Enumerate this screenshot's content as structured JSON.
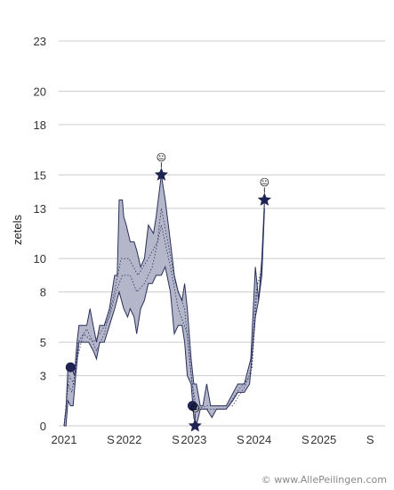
{
  "chart_data": {
    "type": "area",
    "ylabel": "zetels",
    "ylim": [
      0,
      23
    ],
    "y_ticks": [
      0,
      3,
      5,
      8,
      10,
      13,
      15,
      18,
      20,
      23
    ],
    "x_ticks": [
      {
        "label": "2021",
        "t": 2021.0
      },
      {
        "label": "S",
        "t": 2021.72
      },
      {
        "label": "2022",
        "t": 2022.0
      },
      {
        "label": "S",
        "t": 2022.72
      },
      {
        "label": "2023",
        "t": 2023.0
      },
      {
        "label": "S",
        "t": 2023.72
      },
      {
        "label": "2024",
        "t": 2024.0
      },
      {
        "label": "S",
        "t": 2024.72
      },
      {
        "label": "2025",
        "t": 2025.0
      },
      {
        "label": "S",
        "t": 2025.72
      }
    ],
    "xlim": [
      2021.0,
      2025.95
    ],
    "grid": true,
    "colors": {
      "band": "#b3b7c9",
      "line": "#2a2f5c",
      "grid": "#cccccc"
    },
    "series": [
      {
        "name": "",
        "band_high": [
          [
            2021.0,
            0
          ],
          [
            2021.03,
            1
          ],
          [
            2021.06,
            3.5
          ],
          [
            2021.12,
            3.5
          ],
          [
            2021.16,
            3
          ],
          [
            2021.2,
            5
          ],
          [
            2021.23,
            6
          ],
          [
            2021.35,
            6
          ],
          [
            2021.4,
            7
          ],
          [
            2021.45,
            6
          ],
          [
            2021.5,
            5
          ],
          [
            2021.55,
            6
          ],
          [
            2021.62,
            6
          ],
          [
            2021.7,
            7
          ],
          [
            2021.78,
            9
          ],
          [
            2021.82,
            9
          ],
          [
            2021.85,
            13.5
          ],
          [
            2021.9,
            13.5
          ],
          [
            2021.92,
            12.5
          ],
          [
            2021.96,
            12
          ],
          [
            2022.02,
            11
          ],
          [
            2022.08,
            11
          ],
          [
            2022.12,
            10.5
          ],
          [
            2022.18,
            9.5
          ],
          [
            2022.24,
            10
          ],
          [
            2022.3,
            12
          ],
          [
            2022.38,
            11.5
          ],
          [
            2022.42,
            12.5
          ],
          [
            2022.5,
            15
          ],
          [
            2022.56,
            13.5
          ],
          [
            2022.64,
            11
          ],
          [
            2022.7,
            9
          ],
          [
            2022.76,
            8
          ],
          [
            2022.82,
            7.5
          ],
          [
            2022.86,
            8.5
          ],
          [
            2022.9,
            7
          ],
          [
            2022.96,
            4
          ],
          [
            2023.0,
            2.5
          ],
          [
            2023.04,
            2.5
          ],
          [
            2023.1,
            1.2
          ],
          [
            2023.14,
            1.2
          ],
          [
            2023.2,
            2.5
          ],
          [
            2023.26,
            1.2
          ],
          [
            2023.35,
            1.2
          ],
          [
            2023.5,
            1.2
          ],
          [
            2023.68,
            2.5
          ],
          [
            2023.78,
            2.5
          ],
          [
            2023.88,
            4
          ],
          [
            2023.95,
            9.5
          ],
          [
            2024.0,
            7.5
          ],
          [
            2024.05,
            10
          ],
          [
            2024.09,
            13.5
          ]
        ],
        "band_low": [
          [
            2021.0,
            0
          ],
          [
            2021.03,
            0
          ],
          [
            2021.06,
            1.5
          ],
          [
            2021.1,
            1.2
          ],
          [
            2021.14,
            1.2
          ],
          [
            2021.18,
            3
          ],
          [
            2021.23,
            5
          ],
          [
            2021.32,
            5
          ],
          [
            2021.38,
            5
          ],
          [
            2021.45,
            4.5
          ],
          [
            2021.5,
            4
          ],
          [
            2021.55,
            5
          ],
          [
            2021.62,
            5
          ],
          [
            2021.7,
            6
          ],
          [
            2021.78,
            7
          ],
          [
            2021.85,
            8
          ],
          [
            2021.92,
            7
          ],
          [
            2021.98,
            6.5
          ],
          [
            2022.02,
            7
          ],
          [
            2022.08,
            6.5
          ],
          [
            2022.12,
            5.5
          ],
          [
            2022.18,
            7
          ],
          [
            2022.24,
            7.5
          ],
          [
            2022.3,
            8.5
          ],
          [
            2022.36,
            8.5
          ],
          [
            2022.42,
            9
          ],
          [
            2022.5,
            9
          ],
          [
            2022.56,
            9.5
          ],
          [
            2022.64,
            8
          ],
          [
            2022.7,
            5.5
          ],
          [
            2022.76,
            6
          ],
          [
            2022.82,
            6
          ],
          [
            2022.86,
            5
          ],
          [
            2022.9,
            3
          ],
          [
            2022.96,
            2.5
          ],
          [
            2023.0,
            0.5
          ],
          [
            2023.04,
            0
          ],
          [
            2023.1,
            1
          ],
          [
            2023.2,
            1
          ],
          [
            2023.28,
            0.5
          ],
          [
            2023.35,
            1
          ],
          [
            2023.5,
            1
          ],
          [
            2023.6,
            1.5
          ],
          [
            2023.68,
            2
          ],
          [
            2023.78,
            2
          ],
          [
            2023.86,
            2.5
          ],
          [
            2023.95,
            6.5
          ],
          [
            2024.0,
            7.5
          ],
          [
            2024.05,
            9
          ],
          [
            2024.09,
            13
          ]
        ],
        "inner_lines": [
          [
            [
              2021.0,
              0
            ],
            [
              2021.06,
              2.5
            ],
            [
              2021.12,
              2
            ],
            [
              2021.2,
              4
            ],
            [
              2021.3,
              5.5
            ],
            [
              2021.45,
              5
            ],
            [
              2021.55,
              5.5
            ],
            [
              2021.7,
              6.5
            ],
            [
              2021.8,
              8
            ],
            [
              2021.9,
              9
            ],
            [
              2022.02,
              9
            ],
            [
              2022.12,
              8
            ],
            [
              2022.24,
              8.5
            ],
            [
              2022.36,
              9.5
            ],
            [
              2022.5,
              12
            ],
            [
              2022.64,
              9.5
            ],
            [
              2022.76,
              7
            ],
            [
              2022.9,
              5.5
            ],
            [
              2023.0,
              1.5
            ],
            [
              2023.1,
              1
            ],
            [
              2023.3,
              1
            ],
            [
              2023.5,
              1
            ],
            [
              2023.7,
              2.2
            ],
            [
              2023.88,
              3
            ],
            [
              2023.96,
              8
            ],
            [
              2024.05,
              9.5
            ],
            [
              2024.09,
              13.2
            ]
          ],
          [
            [
              2021.0,
              0
            ],
            [
              2021.08,
              3
            ],
            [
              2021.15,
              2.5
            ],
            [
              2021.22,
              5
            ],
            [
              2021.35,
              5.8
            ],
            [
              2021.5,
              4.5
            ],
            [
              2021.62,
              5.5
            ],
            [
              2021.75,
              7.5
            ],
            [
              2021.88,
              10
            ],
            [
              2022.0,
              10
            ],
            [
              2022.14,
              9
            ],
            [
              2022.3,
              10
            ],
            [
              2022.44,
              11
            ],
            [
              2022.5,
              13
            ],
            [
              2022.6,
              11
            ],
            [
              2022.72,
              8.5
            ],
            [
              2022.86,
              7
            ],
            [
              2022.96,
              3
            ],
            [
              2023.04,
              1
            ],
            [
              2023.2,
              1.2
            ],
            [
              2023.4,
              1.2
            ],
            [
              2023.6,
              1.2
            ],
            [
              2023.78,
              2.3
            ],
            [
              2023.9,
              3.5
            ],
            [
              2023.98,
              8.5
            ],
            [
              2024.05,
              9
            ],
            [
              2024.09,
              13
            ]
          ]
        ],
        "markers": [
          {
            "shape": "circle",
            "t": 2021.1,
            "v": 3.5
          },
          {
            "shape": "star",
            "t": 2022.5,
            "v": 15,
            "emoji": "😐"
          },
          {
            "shape": "circle",
            "t": 2022.98,
            "v": 1.2
          },
          {
            "shape": "star",
            "t": 2023.02,
            "v": 0,
            "emoji": "😐"
          },
          {
            "shape": "star",
            "t": 2024.09,
            "v": 13.5,
            "emoji": "😐"
          }
        ]
      }
    ]
  },
  "footer": {
    "credit": "© www.AllePeilingen.com"
  }
}
